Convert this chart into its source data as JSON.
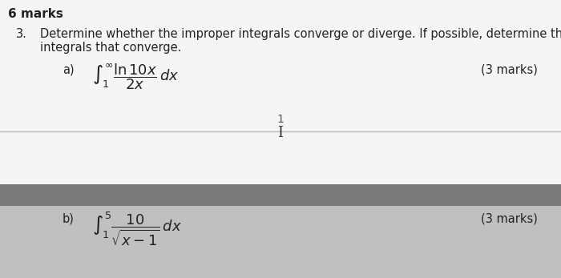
{
  "bg_color": "#e8e8e8",
  "top_bg": "#f5f5f5",
  "divider_bg": "#7a7a7a",
  "bottom_bg": "#c0c0c0",
  "header_text": "6 marks",
  "question_number": "3.",
  "question_text": "Determine whether the improper integrals converge or diverge. If possible, determine the value of the",
  "question_text2": "integrals that converge.",
  "part_a_label": "a)",
  "part_a_marks": "(3 marks)",
  "page_number": "1",
  "cursor": "I",
  "part_b_label": "b)",
  "part_b_marks": "(3 marks)",
  "header_fontsize": 11,
  "question_fontsize": 10.5,
  "integral_fontsize": 13,
  "marks_fontsize": 10.5,
  "separator_line_color": "#bbbbbb",
  "text_color": "#222222"
}
